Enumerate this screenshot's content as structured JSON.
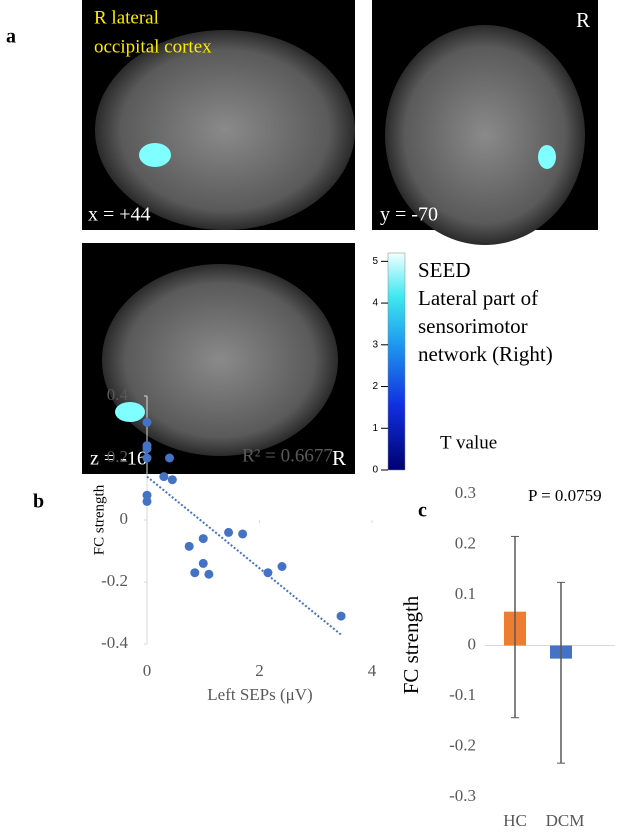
{
  "panel_labels": [
    "a",
    "b",
    "c"
  ],
  "images": [
    {
      "caption": [
        "R lateral",
        "occipital cortex"
      ],
      "coordinate": "x = +44"
    },
    {
      "side": "R",
      "coordinate": "y = -70"
    },
    {
      "side": "R",
      "coordinate": "z = -16"
    }
  ],
  "colorbar": {
    "ylim": [
      0,
      5.2
    ],
    "yticks": [
      0,
      1,
      2,
      3,
      4,
      5
    ],
    "legend": [
      "SEED",
      "Lateral part of",
      "sensorimotor",
      "network (Right)"
    ],
    "label": "T value"
  },
  "chart_data": [
    {
      "type": "scatter",
      "xlabel": "Left SEPs (μV)",
      "ylabel": "FC strength",
      "annotation": "R² = 0.6677",
      "color": "#4472c4",
      "x": [
        0,
        0,
        0,
        0,
        0,
        0,
        0.3,
        0.4,
        0.45,
        0.75,
        0.85,
        1.0,
        1.0,
        1.1,
        1.45,
        1.7,
        2.15,
        2.4,
        3.45
      ],
      "values": [
        0.315,
        0.24,
        0.23,
        0.2,
        0.08,
        0.06,
        0.14,
        0.2,
        0.13,
        -0.085,
        -0.17,
        -0.06,
        -0.14,
        -0.175,
        -0.04,
        -0.045,
        -0.17,
        -0.15,
        -0.31
      ],
      "trendline": {
        "x": [
          0,
          3.45
        ],
        "y": [
          0.14,
          -0.37
        ]
      },
      "xlim": [
        0,
        4
      ],
      "xticks": [
        0,
        2,
        4
      ],
      "ylim": [
        -0.4,
        0.4
      ],
      "yticks": [
        0.4,
        0.2,
        0,
        -0.2,
        -0.4
      ]
    },
    {
      "type": "bar",
      "ylabel": "FC strength",
      "annotation": "P = 0.0759",
      "categories": [
        "HC",
        "DCM"
      ],
      "values": [
        0.067,
        -0.026
      ],
      "colors": [
        "#ed7d31",
        "#4472c4"
      ],
      "error_low": [
        -0.143,
        -0.233
      ],
      "error_high": [
        0.216,
        0.125
      ],
      "ylim": [
        -0.3,
        0.3
      ],
      "yticks": [
        0.3,
        0.2,
        0.1,
        0,
        -0.1,
        -0.2,
        -0.3
      ]
    }
  ]
}
